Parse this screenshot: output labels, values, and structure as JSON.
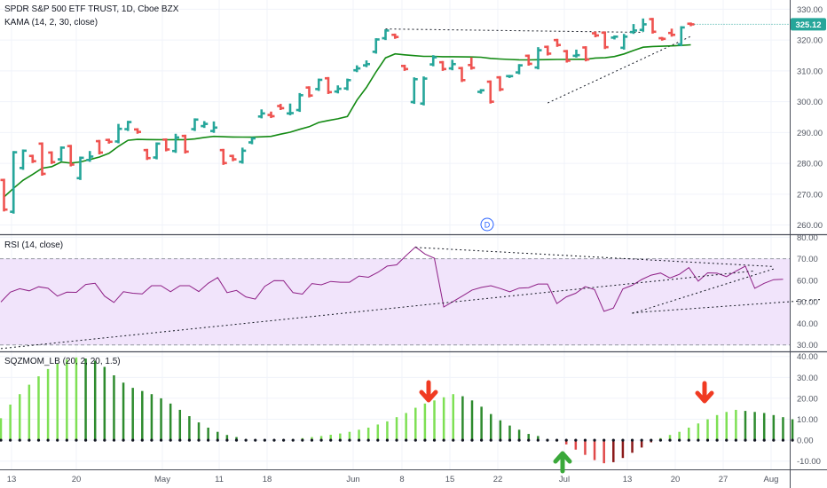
{
  "header": {
    "symbol": "SPDR S&P 500 ETF TRUST, 1D, Cboe BZX",
    "kama_label": "KAMA (14, 2, 30, close)",
    "rsi_label": "RSI (14, close)",
    "sqz_label": "SQZMOM_LB (20, 2, 20, 1.5)",
    "event_marker": "D",
    "last_price": "325.12"
  },
  "colors": {
    "up": "#26a69a",
    "down": "#ef5350",
    "kama": "#138a13",
    "price_line": "#e04848",
    "rsi_line": "#8e1f86",
    "rsi_band": "#f1e4fb",
    "sqz_lime": "#7ee054",
    "sqz_green": "#2e8b2e",
    "sqz_red": "#e04848",
    "sqz_maroon": "#8b1a1a",
    "arrow_red": "#f03a22",
    "arrow_green": "#3aa83a",
    "badge": "#26a69a"
  },
  "chart_data": [
    {
      "type": "ohlc",
      "title": "SPDR S&P 500 ETF TRUST, 1D, Cboe BZX",
      "x_ticks": [
        "13",
        "20",
        "May",
        "11",
        "18",
        "Jun",
        "8",
        "15",
        "22",
        "Jul",
        "13",
        "20",
        "27",
        "Aug"
      ],
      "y_ticks": [
        260,
        270,
        280,
        290,
        300,
        310,
        320,
        330
      ],
      "ylim": [
        257,
        333
      ],
      "bars": [
        [
          274.6,
          265.0,
          269.1
        ],
        [
          264.3,
          283.6,
          280.3
        ],
        [
          278.5,
          284.1,
          282.3
        ],
        [
          282.4,
          280.7,
          282.1
        ],
        [
          286.4,
          276.6,
          284.5
        ],
        [
          283.5,
          280.4,
          280.5
        ],
        [
          281.3,
          285.1,
          284.9
        ],
        [
          285.6,
          279.6,
          279.0
        ],
        [
          275.2,
          281.8,
          281.6
        ],
        [
          281.1,
          282.2,
          283.6
        ],
        [
          287.2,
          283.5,
          284.4
        ],
        [
          287.6,
          287.0,
          286.9
        ],
        [
          287.1,
          291.2,
          292.4
        ],
        [
          291.1,
          293.4,
          293.3
        ],
        [
          291.0,
          290.2,
          290.1
        ],
        [
          284.3,
          281.7,
          283.5
        ],
        [
          281.9,
          286.4,
          284.3
        ],
        [
          287.7,
          284.5,
          285.2
        ],
        [
          284.0,
          288.4,
          289.2
        ],
        [
          288.9,
          283.8,
          288.3
        ],
        [
          291.1,
          294.2,
          293.6
        ],
        [
          292.1,
          292.8,
          293.3
        ],
        [
          290.5,
          291.6,
          293.2
        ],
        [
          284.3,
          280.1,
          279.8
        ],
        [
          282.4,
          281.3,
          281.1
        ],
        [
          280.5,
          284.1,
          284.7
        ],
        [
          286.8,
          288.1,
          287.4
        ],
        [
          295.2,
          296.2,
          297.1
        ],
        [
          295.7,
          295.3,
          296.4
        ],
        [
          298.6,
          297.9,
          298.9
        ],
        [
          296.2,
          296.3,
          299.0
        ],
        [
          297.3,
          302.1,
          302.4
        ],
        [
          304.6,
          302.0,
          303.7
        ],
        [
          304.1,
          307.1,
          307.1
        ],
        [
          307.6,
          303.1,
          305.5
        ],
        [
          303.3,
          304.2,
          304.9
        ],
        [
          304.3,
          307.0,
          307.1
        ],
        [
          310.2,
          310.8,
          311.4
        ],
        [
          311.8,
          312.2,
          313.0
        ],
        [
          316.2,
          320.2,
          319.6
        ],
        [
          320.6,
          323.1,
          323.1
        ],
        [
          321.7,
          321.0,
          320.2
        ],
        [
          311.6,
          310.6,
          311.0
        ],
        [
          299.9,
          307.3,
          307.5
        ],
        [
          299.4,
          307.5,
          307.8
        ],
        [
          312.1,
          314.4,
          314.7
        ],
        [
          312.8,
          310.6,
          309.7
        ],
        [
          310.8,
          312.2,
          313.2
        ],
        [
          310.9,
          307.0,
          307.3
        ],
        [
          311.9,
          311.0,
          314.0
        ],
        [
          303.2,
          303.7,
          303.5
        ],
        [
          306.5,
          300.0,
          300.2
        ],
        [
          307.9,
          304.0,
          304.0
        ],
        [
          308.3,
          308.3,
          308.2
        ],
        [
          309.5,
          311.8,
          310.5
        ],
        [
          314.9,
          312.3,
          311.4
        ],
        [
          311.1,
          316.7,
          317.3
        ],
        [
          317.8,
          315.6,
          315.0
        ],
        [
          320.0,
          318.4,
          317.0
        ],
        [
          316.4,
          313.3,
          313.5
        ],
        [
          314.9,
          315.1,
          316.5
        ],
        [
          317.6,
          313.7,
          313.4
        ],
        [
          322.2,
          321.5,
          322.4
        ],
        [
          322.4,
          317.7,
          320.2
        ],
        [
          320.8,
          321.1,
          319.4
        ],
        [
          317.5,
          321.1,
          321.6
        ],
        [
          322.6,
          323.1,
          324.8
        ],
        [
          323.3,
          325.1,
          326.6
        ],
        [
          326.8,
          322.7,
          322.4
        ],
        [
          320.6,
          320.4,
          320.2
        ],
        [
          322.3,
          321.7,
          323.3
        ],
        [
          318.6,
          324.1,
          322.5
        ],
        [
          325.3,
          325.1,
          325.1
        ]
      ],
      "last_price": 325.12
    },
    {
      "type": "line",
      "title": "RSI (14, close)",
      "y_ticks": [
        30,
        40,
        50,
        60,
        70,
        80
      ],
      "ylim": [
        27,
        81
      ],
      "band": [
        30,
        70
      ],
      "values": [
        49.9,
        54.5,
        56.1,
        55.1,
        57.0,
        56.3,
        52.7,
        54.5,
        54.4,
        58.1,
        58.6,
        52.7,
        49.7,
        54.7,
        54.0,
        53.7,
        57.5,
        57.5,
        54.7,
        57.5,
        57.5,
        54.8,
        58.6,
        61.3,
        54.3,
        55.3,
        52.3,
        51.3,
        57.2,
        59.9,
        59.8,
        54.3,
        53.6,
        58.5,
        57.9,
        59.5,
        59.1,
        59.1,
        62.0,
        61.4,
        63.7,
        66.6,
        67.2,
        71.5,
        75.5,
        72.2,
        70.3,
        47.6,
        50.2,
        52.8,
        55.5,
        56.7,
        57.5,
        56.2,
        54.7,
        56.4,
        56.6,
        58.3,
        58.3,
        49.2,
        52.3,
        54.0,
        57.1,
        55.7,
        45.6,
        47.1,
        56.0,
        57.7,
        60.4,
        62.4,
        63.4,
        61.1,
        62.8,
        65.9,
        59.6,
        63.5,
        63.3,
        61.7,
        64.3,
        66.6,
        56.3,
        58.6,
        60.3,
        60.5
      ],
      "trendlines": [
        {
          "from": [
            44,
            75.3
          ],
          "to": [
            82,
            66.4
          ]
        },
        {
          "from": [
            0,
            28.3
          ],
          "to": [
            80,
            64.4
          ]
        },
        {
          "from": [
            67,
            44.6
          ],
          "to": [
            82,
            65.3
          ]
        },
        {
          "from": [
            67,
            44.9
          ],
          "to": [
            87,
            51.1
          ]
        }
      ]
    },
    {
      "type": "bar",
      "title": "SQZMOM_LB (20, 2, 20, 1.5)",
      "y_ticks": [
        -10,
        0,
        10,
        20,
        30,
        40
      ],
      "ylim": [
        -13.5,
        42
      ],
      "values": [
        10.5,
        17.0,
        22.0,
        26.5,
        30.5,
        34.0,
        36.5,
        38.5,
        39.5,
        39.0,
        38.0,
        35.0,
        31.0,
        27.5,
        25.0,
        23.5,
        22.0,
        20.0,
        17.5,
        14.5,
        11.5,
        8.5,
        6.0,
        4.0,
        2.5,
        1.5,
        0.5,
        0.3,
        0.1,
        -0.1,
        0.2,
        0.5,
        1.0,
        1.5,
        2.0,
        2.6,
        3.2,
        4.0,
        5.0,
        6.0,
        7.5,
        9.0,
        11.0,
        13.0,
        15.5,
        17.5,
        19.0,
        20.5,
        22.0,
        21.0,
        19.0,
        16.0,
        12.5,
        9.5,
        7.0,
        5.0,
        3.0,
        2.0,
        0.5,
        -0.5,
        -2.0,
        -4.5,
        -7.0,
        -9.5,
        -11.0,
        -10.5,
        -8.5,
        -6.0,
        -3.5,
        -1.0,
        1.0,
        2.5,
        4.0,
        6.0,
        8.0,
        10.0,
        12.0,
        13.5,
        14.5,
        14.0,
        13.5,
        13.0,
        12.0,
        11.0,
        10.0
      ],
      "squeeze_dots": "black"
    }
  ],
  "axes": {
    "main_y_labels": [
      "330.00",
      "320.00",
      "310.00",
      "300.00",
      "290.00",
      "280.00",
      "270.00",
      "260.00"
    ],
    "rsi_y_labels": [
      "80.00",
      "70.00",
      "60.00",
      "50.00",
      "40.00",
      "30.00"
    ],
    "sqz_y_labels": [
      "40.00",
      "30.00",
      "20.00",
      "10.00",
      "0.00",
      "-10.00"
    ]
  }
}
